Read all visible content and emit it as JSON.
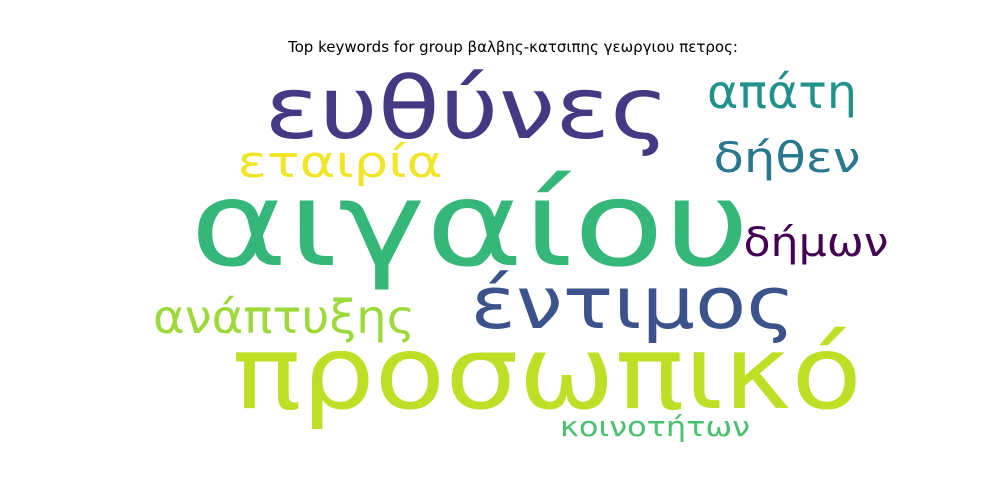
{
  "chart_data": {
    "type": "wordcloud",
    "title": "Top keywords for group βαλβης-κατσιπης γεωργιου πετρος:",
    "words": [
      {
        "text": "αιγαίου",
        "color": "#35b779"
      },
      {
        "text": "προσωπικό",
        "color": "#bddf26"
      },
      {
        "text": "ευθύνες",
        "color": "#443983"
      },
      {
        "text": "έντιμος",
        "color": "#3b528b"
      },
      {
        "text": "εταιρία",
        "color": "#f0e526"
      },
      {
        "text": "ανάπτυξης",
        "color": "#9dd93b"
      },
      {
        "text": "απάτη",
        "color": "#21918c"
      },
      {
        "text": "δήθεν",
        "color": "#2a788e"
      },
      {
        "text": "δήμων",
        "color": "#440154"
      },
      {
        "text": "κοινοτήτων",
        "color": "#4ac16d"
      }
    ]
  }
}
